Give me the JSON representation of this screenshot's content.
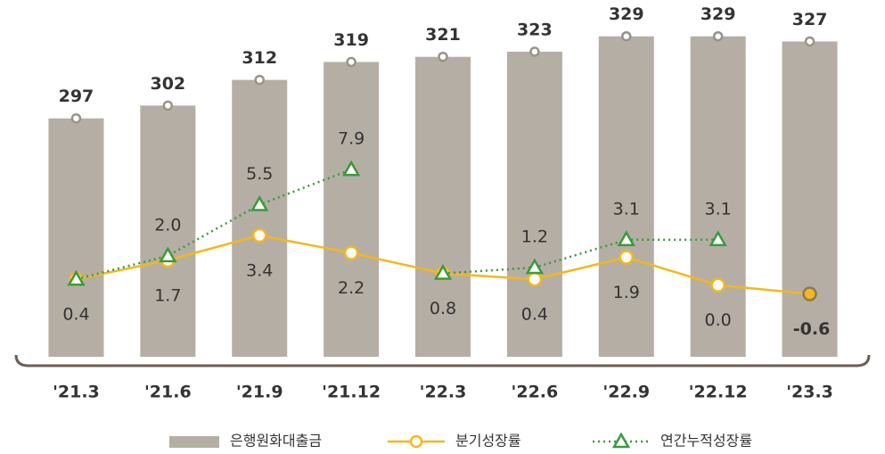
{
  "chart_data": {
    "type": "bar-line",
    "categories": [
      "'21.3",
      "'21.6",
      "'21.9",
      "'21.12",
      "'22.3",
      "'22.6",
      "'22.9",
      "'22.12",
      "'23.3"
    ],
    "ylim": [
      204,
      339
    ],
    "y2lim": [
      -4.9,
      18.76
    ],
    "series": [
      {
        "name": "은행원화대출금",
        "type": "bar",
        "color": "#b5aea4",
        "values": [
          297,
          302,
          312,
          319,
          321,
          323,
          329,
          329,
          327
        ]
      },
      {
        "name": "분기성장률",
        "type": "line",
        "axis": "y2",
        "color": "#f5b71e",
        "marker": "circle",
        "values": [
          0.4,
          1.7,
          3.4,
          2.2,
          0.8,
          0.4,
          1.9,
          0.0,
          -0.6
        ],
        "value_labels": [
          "0.4",
          "1.7",
          "3.4",
          "2.2",
          "0.8",
          "0.4",
          "1.9",
          "0.0",
          "-0.6"
        ]
      },
      {
        "name": "연간누적성장률",
        "type": "line",
        "axis": "y2",
        "color": "#3a9a3c",
        "marker": "triangle",
        "dotted": true,
        "values": [
          0.4,
          2.0,
          5.5,
          7.9,
          null,
          null,
          null,
          null,
          null
        ],
        "value_labels": [
          null,
          "2.0",
          "5.5",
          "7.9",
          null,
          null,
          null,
          null,
          null
        ]
      },
      {
        "name": "연간누적성장률",
        "type": "line",
        "axis": "y2",
        "color": "#3a9a3c",
        "marker": "triangle",
        "dotted": true,
        "values": [
          null,
          null,
          null,
          null,
          0.8,
          1.2,
          3.1,
          3.1,
          null
        ],
        "value_labels": [
          null,
          null,
          null,
          null,
          null,
          "1.2",
          "3.1",
          "3.1",
          null
        ]
      }
    ]
  }
}
